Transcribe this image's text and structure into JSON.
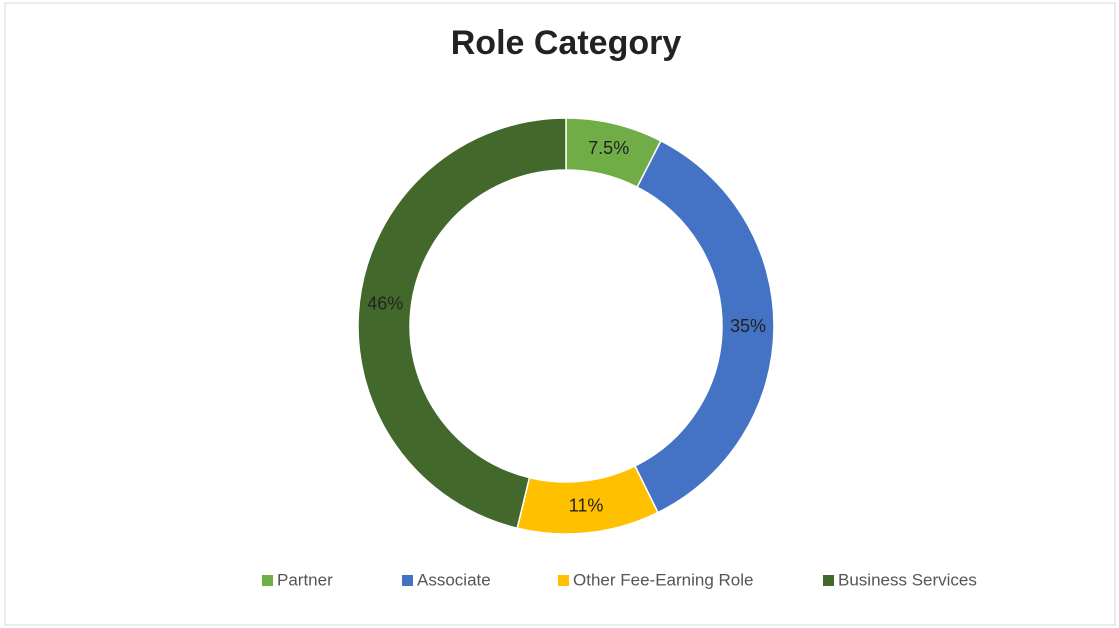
{
  "chart_data": {
    "type": "donut",
    "title": "Role Category",
    "categories": [
      "Partner",
      "Associate",
      "Other Fee-Earning Role",
      "Business Services"
    ],
    "values": [
      7.5,
      35,
      11,
      46
    ],
    "value_labels": [
      "7.5%",
      "35%",
      "11%",
      "46%"
    ],
    "colors": [
      "#70ad47",
      "#4472c4",
      "#ffc000",
      "#43682b"
    ]
  }
}
